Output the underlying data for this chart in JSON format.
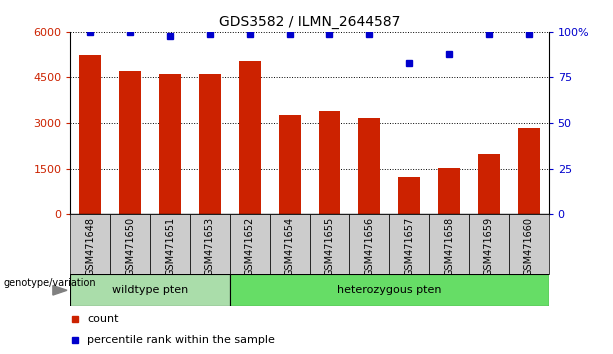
{
  "title": "GDS3582 / ILMN_2644587",
  "categories": [
    "GSM471648",
    "GSM471650",
    "GSM471651",
    "GSM471653",
    "GSM471652",
    "GSM471654",
    "GSM471655",
    "GSM471656",
    "GSM471657",
    "GSM471658",
    "GSM471659",
    "GSM471660"
  ],
  "counts": [
    5250,
    4700,
    4600,
    4620,
    5050,
    3250,
    3400,
    3150,
    1230,
    1530,
    1980,
    2850
  ],
  "percentile_ranks": [
    100,
    100,
    98,
    99,
    99,
    99,
    99,
    99,
    83,
    88,
    99,
    99
  ],
  "bar_color": "#CC2200",
  "dot_color": "#0000CC",
  "ylim_left": [
    0,
    6000
  ],
  "yticks_left": [
    0,
    1500,
    3000,
    4500,
    6000
  ],
  "ylim_right": [
    0,
    100
  ],
  "yticks_right": [
    0,
    25,
    50,
    75,
    100
  ],
  "yticklabels_right": [
    "0",
    "25",
    "50",
    "75",
    "100%"
  ],
  "ylabel_left_color": "#CC2200",
  "ylabel_right_color": "#0000CC",
  "wt_count": 4,
  "het_count": 8,
  "wildtype_label": "wildtype pten",
  "heterozygous_label": "heterozygous pten",
  "wildtype_color": "#AADDAA",
  "heterozygous_color": "#66DD66",
  "xtick_bg_color": "#CCCCCC",
  "genotype_label": "genotype/variation",
  "legend_count_label": "count",
  "legend_percentile_label": "percentile rank within the sample"
}
